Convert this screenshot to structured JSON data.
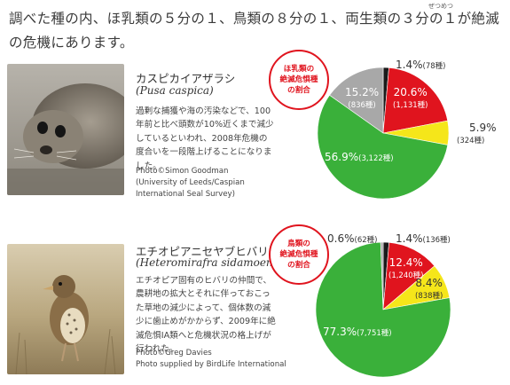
{
  "intro": {
    "ruby": "ぜつめつ",
    "text": "調べた種の内、ほ乳類の５分の１、鳥類の８分の１、両生類の３分の１が絶滅の危機にあります。"
  },
  "sections": [
    {
      "name_jp": "カスピカイアザラシ",
      "name_sci": "(Pusa caspica)",
      "description": "過剰な捕獲や海の汚染などで、100年前と比べ頭数が10%近くまで減少しているといわれ、2008年危機の度合いを一段階上げることになりました。",
      "credit": [
        "Photo©Simon Goodman",
        "(University of Leeds/Caspian",
        "International Seal Survey)"
      ],
      "badge": [
        "ほ乳類の",
        "絶滅危惧種",
        "の割合"
      ],
      "chart_data": {
        "type": "pie",
        "title": "ほ乳類の絶滅危惧種の割合",
        "slices": [
          {
            "percent": 1.4,
            "label": "1.4%",
            "count": "(78種)",
            "color": "#1a1a1a"
          },
          {
            "percent": 20.6,
            "label": "20.6%",
            "count": "(1,131種)",
            "color": "#e0141e"
          },
          {
            "percent": 5.9,
            "label": "5.9%",
            "count": "(324種)",
            "color": "#f5e61a"
          },
          {
            "percent": 56.9,
            "label": "56.9%",
            "count": "(3,122種)",
            "color": "#3ab03a"
          },
          {
            "percent": 15.2,
            "label": "15.2%",
            "count": "(836種)",
            "color": "#a8a8a8"
          }
        ]
      }
    },
    {
      "name_jp": "エチオピアニセヤブヒバリ",
      "name_sci": "(Heteromirafra sidamoensis)",
      "description": "エチオピア固有のヒバリの仲間で、農耕地の拡大とそれに伴っておこった草地の減少によって、個体数の減少に歯止めがかからず、2009年に絶滅危惧ⅠA類へと危機状況の格上げが行われた。",
      "credit": [
        "Photo©Greg Davies",
        "Photo supplied by BirdLife International"
      ],
      "badge": [
        "鳥類の",
        "絶滅危惧種",
        "の割合"
      ],
      "chart_data": {
        "type": "pie",
        "title": "鳥類の絶滅危惧種の割合",
        "slices": [
          {
            "percent": 1.4,
            "label": "1.4%",
            "count": "(136種)",
            "color": "#1a1a1a"
          },
          {
            "percent": 12.4,
            "label": "12.4%",
            "count": "(1,240種)",
            "color": "#e0141e"
          },
          {
            "percent": 8.4,
            "label": "8.4%",
            "count": "(838種)",
            "color": "#f5e61a"
          },
          {
            "percent": 77.3,
            "label": "77.3%",
            "count": "(7,751種)",
            "color": "#3ab03a"
          },
          {
            "percent": 0.6,
            "label": "0.6%",
            "count": "(62種)",
            "color": "#a8a8a8"
          }
        ]
      }
    }
  ]
}
